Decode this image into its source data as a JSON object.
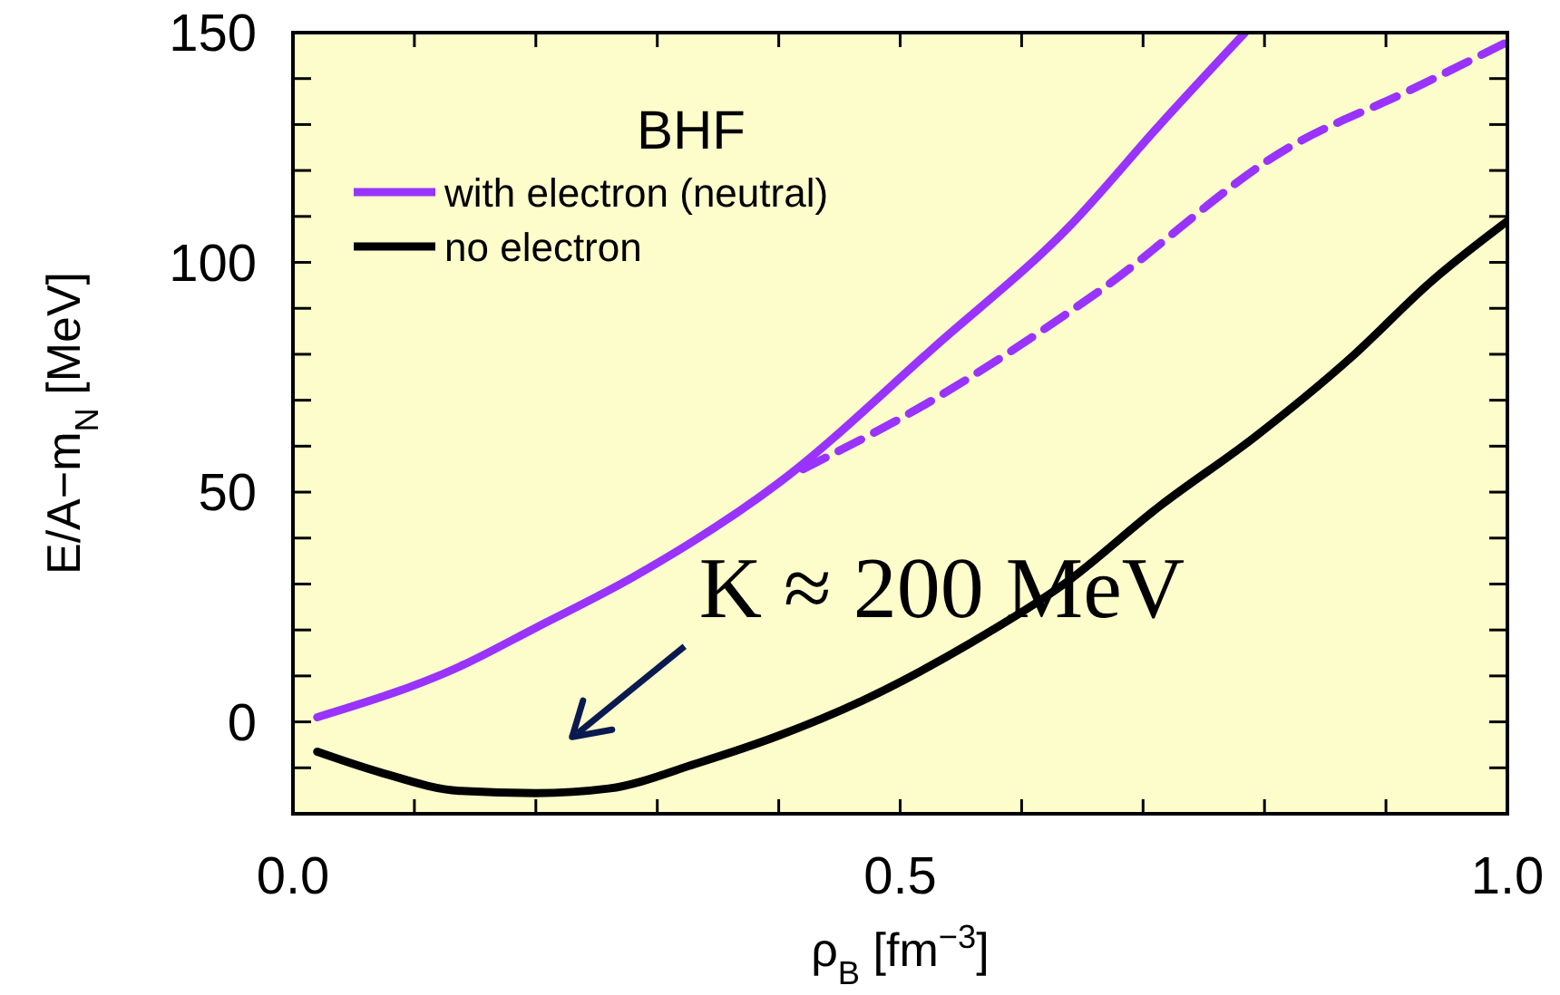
{
  "chart_data": {
    "type": "line",
    "xlabel": "ρ$_{B}$ [fm$^{−3}$]",
    "ylabel": "E/A−m$_{N}$ [MeV]",
    "legend_title": "BHF",
    "legend": "top left",
    "line_style": "solid",
    "marker": "none",
    "xlim": [
      0,
      1
    ],
    "ylim": [
      -20,
      150
    ],
    "xticks": [
      {
        "value": 0,
        "label": "0.0"
      },
      {
        "value": 0.1,
        "label": null
      },
      {
        "value": 0.2,
        "label": null
      },
      {
        "value": 0.3,
        "label": null
      },
      {
        "value": 0.4,
        "label": null
      },
      {
        "value": 0.5,
        "label": "0.5"
      },
      {
        "value": 0.6,
        "label": null
      },
      {
        "value": 0.7,
        "label": null
      },
      {
        "value": 0.8,
        "label": null
      },
      {
        "value": 0.9,
        "label": null
      },
      {
        "value": 1,
        "label": "1.0"
      }
    ],
    "yticks": [
      {
        "value": -10,
        "label": null
      },
      0,
      {
        "value": 10,
        "label": null
      },
      {
        "value": 20,
        "label": null
      },
      {
        "value": 30,
        "label": null
      },
      {
        "value": 40,
        "label": null
      },
      50,
      {
        "value": 60,
        "label": null
      },
      {
        "value": 70,
        "label": null
      },
      {
        "value": 80,
        "label": null
      },
      {
        "value": 90,
        "label": null
      },
      100,
      {
        "value": 110,
        "label": null
      },
      {
        "value": 120,
        "label": null
      },
      {
        "value": 130,
        "label": null
      },
      {
        "value": 140,
        "label": null
      },
      150
    ],
    "series": [
      {
        "name": "with electron (neutral)",
        "color": "#9933ff",
        "x": [
          0.02,
          0.137,
          0.2,
          0.28,
          0.4,
          0.53,
          0.64,
          0.714,
          0.784
        ],
        "values": [
          1,
          12,
          20.5,
          31.5,
          52,
          82,
          108,
          130,
          150
        ]
      },
      {
        "name": "no electron",
        "color": "#000000",
        "x": [
          0.02,
          0.072,
          0.137,
          0.2,
          0.26,
          0.333,
          0.4,
          0.468,
          0.557,
          0.635,
          0.714,
          0.792,
          0.87,
          0.938,
          1.0
        ],
        "values": [
          -6.5,
          -11,
          -15,
          -15.5,
          -14.5,
          -9,
          -3,
          4.5,
          17,
          30,
          47,
          62,
          79,
          96,
          109
        ]
      },
      {
        "color": "#9933ff",
        "line_style": "dashed",
        "x": [
          0.42,
          0.52,
          0.66,
          0.82,
          0.92,
          1.0
        ],
        "values": [
          55,
          69,
          93,
          125,
          137.5,
          148
        ]
      }
    ],
    "annotations": [
      {
        "text": "K ≈ 200 MeV",
        "x": 0.2,
        "y": -15.5
      }
    ]
  }
}
